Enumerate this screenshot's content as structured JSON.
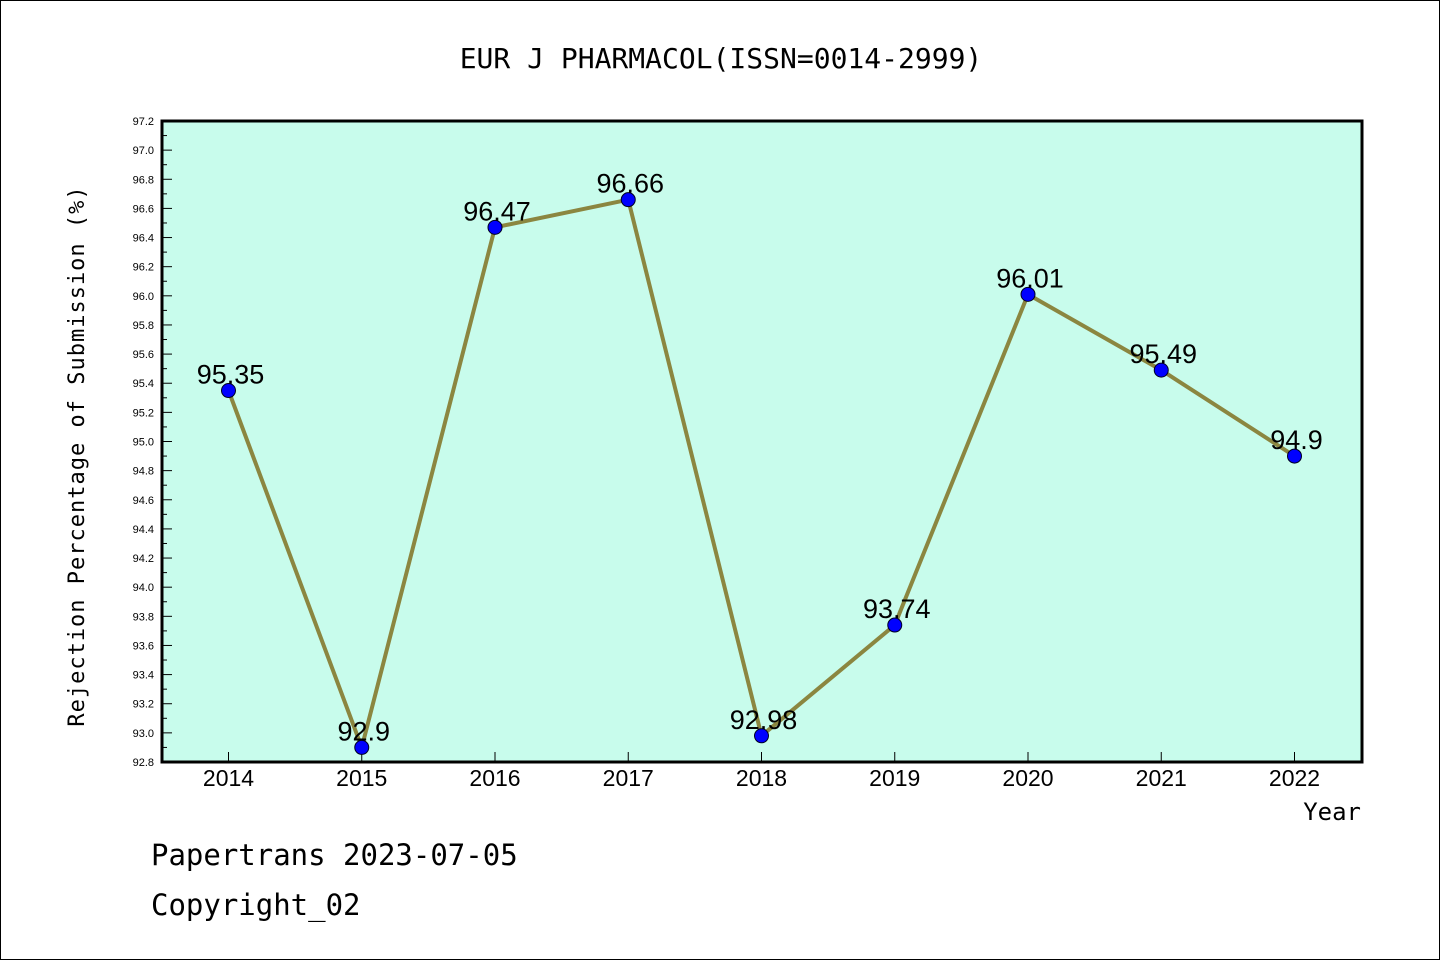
{
  "chart_data": {
    "type": "line",
    "title": "EUR J PHARMACOL(ISSN=0014-2999)",
    "xlabel": "Year",
    "ylabel": "Rejection Percentage of Submission (%)",
    "categories": [
      "2014",
      "2015",
      "2016",
      "2017",
      "2018",
      "2019",
      "2020",
      "2021",
      "2022"
    ],
    "series": [
      {
        "values": [
          95.35,
          92.9,
          96.47,
          96.66,
          92.98,
          93.74,
          96.01,
          95.49,
          94.9
        ],
        "labels": [
          "95.35",
          "92.9",
          "96.47",
          "96.66",
          "92.98",
          "93.74",
          "96.01",
          "95.49",
          "94.9"
        ]
      }
    ],
    "ylim": [
      92.8,
      97.2
    ],
    "yticks": [
      "92.8",
      "93.0",
      "93.2",
      "93.4",
      "93.6",
      "93.8",
      "94.0",
      "94.2",
      "94.4",
      "94.6",
      "94.8",
      "95.0",
      "95.2",
      "95.4",
      "95.6",
      "95.8",
      "96.0",
      "96.2",
      "96.4",
      "96.6",
      "96.8",
      "97.0",
      "97.2"
    ],
    "grid": false,
    "colors": {
      "plot_background": "#c8fcec",
      "line": "#8b8640",
      "marker": "#0000ff",
      "axis": "#000000"
    }
  },
  "footer": {
    "credit": "Papertrans 2023-07-05",
    "copyright": "Copyright_02"
  }
}
